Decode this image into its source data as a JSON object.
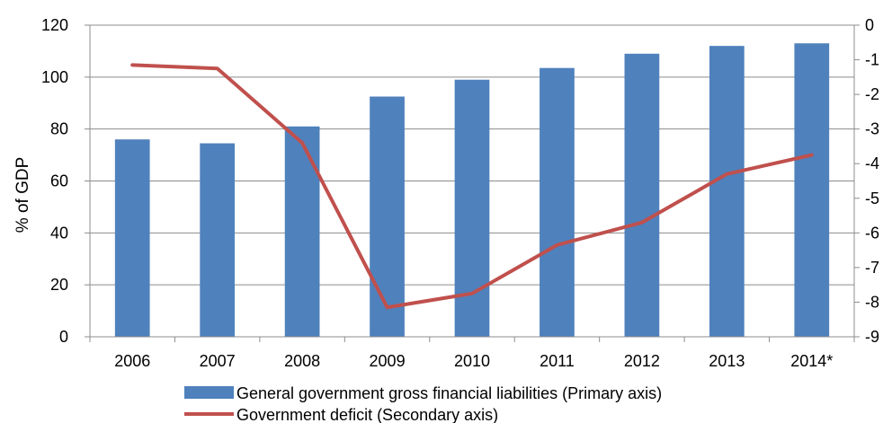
{
  "chart_data": {
    "type": "bar",
    "categories": [
      "2006",
      "2007",
      "2008",
      "2009",
      "2010",
      "2011",
      "2012",
      "2013",
      "2014*"
    ],
    "series": [
      {
        "name": "General government gross financial liabilities (Primary axis)",
        "type": "bar",
        "axis": "primary",
        "color": "#4F81BD",
        "values": [
          76,
          74.5,
          81,
          92.5,
          99,
          103.5,
          109,
          112,
          113
        ]
      },
      {
        "name": "Government deficit (Secondary axis)",
        "type": "line",
        "axis": "secondary",
        "color": "#C0504D",
        "values": [
          -1.15,
          -1.25,
          -3.4,
          -8.15,
          -7.75,
          -6.35,
          -5.7,
          -4.3,
          -3.75
        ]
      }
    ],
    "ylabel": "% of GDP",
    "ylim": [
      0,
      120
    ],
    "yticks": [
      0,
      20,
      40,
      60,
      80,
      100,
      120
    ],
    "y2lim": [
      -9,
      0
    ],
    "y2ticks": [
      "0",
      "-1",
      "-2",
      "-3",
      "-4",
      "-5",
      "-6",
      "-7",
      "-8",
      "-9"
    ],
    "grid": true,
    "legend_position": "bottom"
  }
}
